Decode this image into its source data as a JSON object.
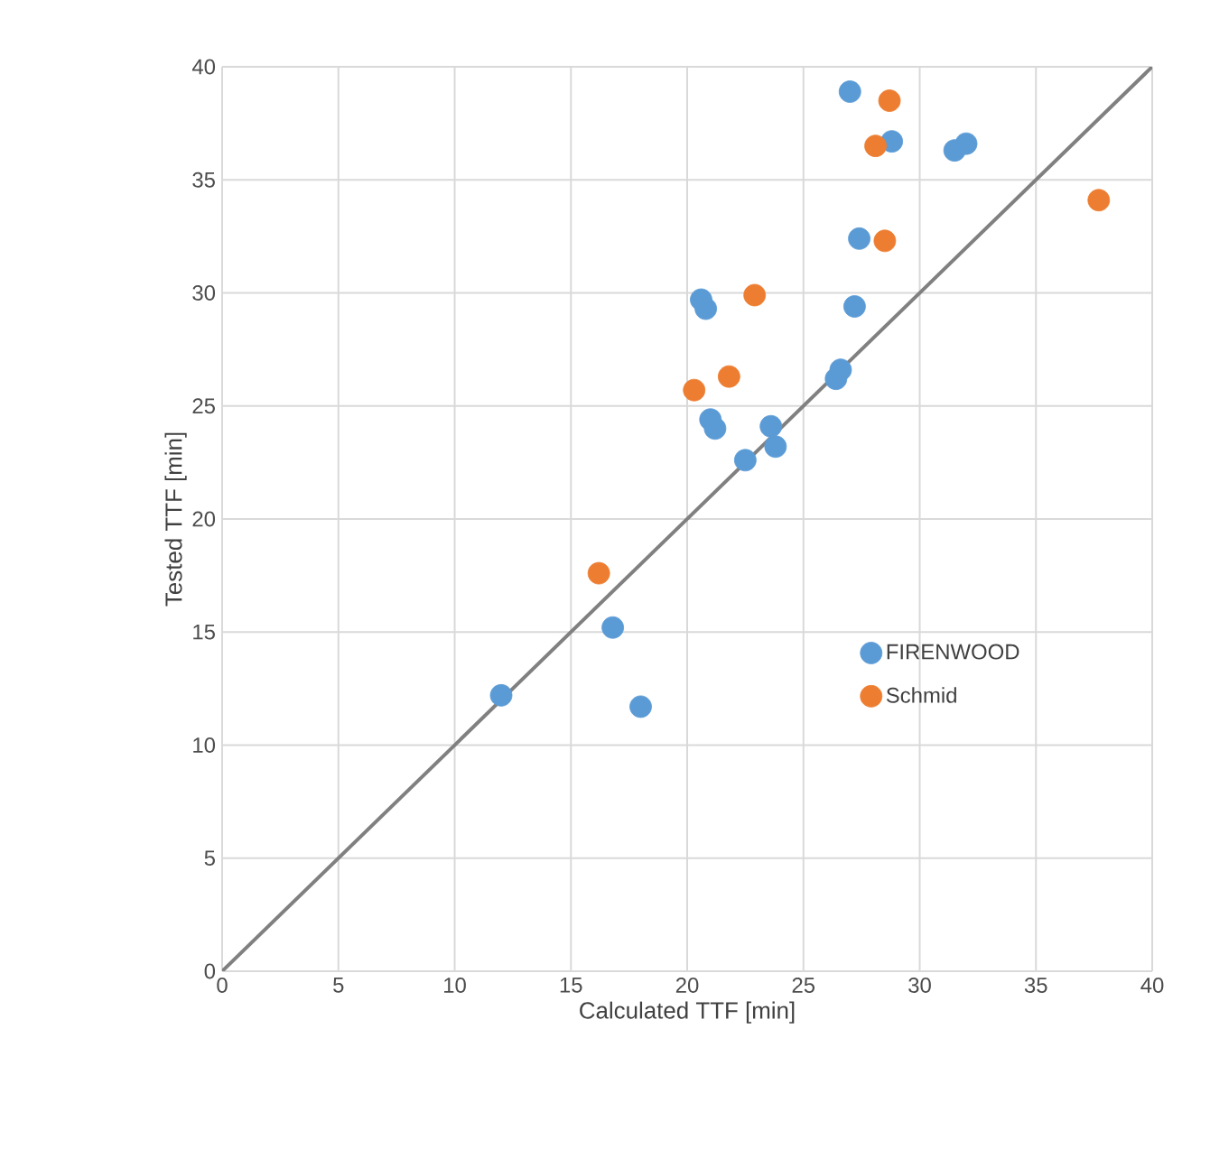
{
  "chart_data": {
    "type": "scatter",
    "xlabel": "Calculated TTF [min]",
    "ylabel": "Tested TTF [min]",
    "xlim": [
      0,
      40
    ],
    "ylim": [
      0,
      40
    ],
    "xticks": [
      0,
      5,
      10,
      15,
      20,
      25,
      30,
      35,
      40
    ],
    "yticks": [
      0,
      5,
      10,
      15,
      20,
      25,
      30,
      35,
      40
    ],
    "grid": true,
    "legend": "right",
    "series": [
      {
        "name": "FIRENWOOD",
        "marker": "circle",
        "color": "#5b9bd5",
        "x": [
          12.0,
          16.8,
          18.0,
          20.6,
          20.8,
          21.0,
          21.2,
          22.5,
          23.6,
          23.8,
          26.4,
          26.6,
          27.2,
          27.0,
          27.4,
          28.8,
          31.5,
          32.0
        ],
        "values": [
          12.2,
          15.2,
          11.7,
          29.7,
          29.3,
          24.4,
          24.0,
          22.6,
          24.1,
          23.2,
          26.2,
          26.6,
          29.4,
          38.9,
          32.4,
          36.7,
          36.3,
          36.6
        ]
      },
      {
        "name": "Schmid",
        "marker": "circle",
        "color": "#ed7d31",
        "x": [
          16.2,
          20.3,
          21.8,
          22.9,
          28.1,
          28.7,
          28.5,
          37.7
        ],
        "values": [
          17.6,
          25.7,
          26.3,
          29.9,
          36.5,
          38.5,
          32.3,
          34.1
        ]
      },
      {
        "type": "line",
        "marker": "none",
        "color": "#808080",
        "x": [
          0,
          40
        ],
        "values": [
          0,
          40
        ]
      }
    ]
  }
}
